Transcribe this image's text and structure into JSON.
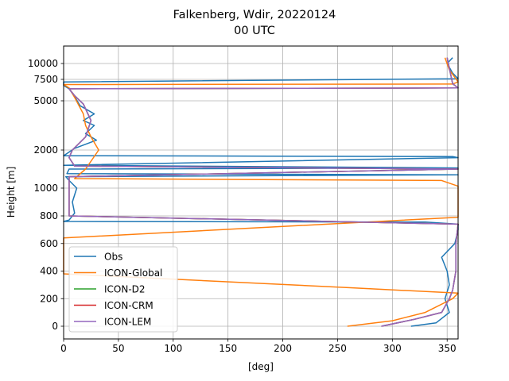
{
  "chart_data": {
    "type": "line",
    "title_line1": "Falkenberg, Wdir, 20220124",
    "title_line2": "00 UTC",
    "xlabel": "[deg]",
    "ylabel": "Height [m]",
    "xlim": [
      0,
      360
    ],
    "y_scale": "piecewise (heights above 800 m compressed)",
    "grid": true,
    "legend_position": "lower left",
    "x_ticks": [
      0,
      50,
      100,
      150,
      200,
      250,
      300,
      350
    ],
    "y_ticks": [
      0,
      200,
      400,
      600,
      800,
      1000,
      2000,
      5000,
      7500,
      10000
    ],
    "series": [
      {
        "name": "Obs",
        "color": "#1f77b4",
        "points": [
          [
            317,
            0
          ],
          [
            340,
            25
          ],
          [
            352,
            100
          ],
          [
            348,
            200
          ],
          [
            352,
            300
          ],
          [
            350,
            400
          ],
          [
            345,
            500
          ],
          [
            357,
            600
          ],
          [
            360,
            700
          ],
          [
            360,
            740
          ],
          [
            330,
            755
          ],
          [
            0,
            760
          ],
          [
            5,
            770
          ],
          [
            10,
            820
          ],
          [
            8,
            900
          ],
          [
            12,
            1000
          ],
          [
            5,
            1200
          ],
          [
            2,
            1300
          ],
          [
            360,
            1350
          ],
          [
            3,
            1380
          ],
          [
            5,
            1500
          ],
          [
            360,
            1530
          ],
          [
            0,
            1600
          ],
          [
            360,
            1800
          ],
          [
            355,
            1830
          ],
          [
            0,
            1850
          ],
          [
            10,
            2100
          ],
          [
            30,
            2600
          ],
          [
            20,
            3000
          ],
          [
            28,
            3500
          ],
          [
            18,
            3800
          ],
          [
            28,
            4200
          ],
          [
            15,
            4700
          ],
          [
            10,
            5500
          ],
          [
            5,
            6400
          ],
          [
            0,
            6800
          ],
          [
            0,
            7200
          ],
          [
            360,
            7600
          ],
          [
            355,
            8500
          ],
          [
            350,
            10000
          ],
          [
            355,
            10500
          ]
        ]
      },
      {
        "name": "ICON-Global",
        "color": "#ff7f0e",
        "points": [
          [
            259,
            0
          ],
          [
            300,
            40
          ],
          [
            330,
            100
          ],
          [
            355,
            200
          ],
          [
            360,
            240
          ],
          [
            260,
            280
          ],
          [
            0,
            380
          ],
          [
            0,
            500
          ],
          [
            0,
            640
          ],
          [
            360,
            790
          ],
          [
            360,
            1050
          ],
          [
            345,
            1200
          ],
          [
            10,
            1250
          ],
          [
            20,
            1500
          ],
          [
            32,
            2000
          ],
          [
            25,
            2800
          ],
          [
            20,
            3500
          ],
          [
            18,
            4200
          ],
          [
            10,
            5400
          ],
          [
            5,
            6500
          ],
          [
            0,
            6900
          ],
          [
            355,
            6950
          ],
          [
            360,
            7200
          ],
          [
            352,
            9000
          ],
          [
            348,
            10500
          ]
        ]
      },
      {
        "name": "ICON-D2",
        "color": "#2ca02c",
        "points": [
          [
            290,
            0
          ],
          [
            320,
            50
          ],
          [
            345,
            100
          ],
          [
            352,
            200
          ],
          [
            355,
            260
          ],
          [
            358,
            400
          ],
          [
            358,
            600
          ],
          [
            360,
            740
          ],
          [
            5,
            800
          ],
          [
            5,
            1300
          ],
          [
            360,
            1500
          ],
          [
            10,
            1580
          ],
          [
            5,
            1800
          ],
          [
            8,
            2000
          ],
          [
            20,
            2800
          ],
          [
            25,
            3800
          ],
          [
            18,
            4800
          ],
          [
            10,
            5600
          ],
          [
            5,
            6400
          ],
          [
            360,
            6500
          ],
          [
            355,
            7000
          ],
          [
            350,
            10500
          ]
        ]
      },
      {
        "name": "ICON-CRM",
        "color": "#d62728",
        "points": [
          [
            290,
            0
          ],
          [
            320,
            50
          ],
          [
            345,
            100
          ],
          [
            352,
            200
          ],
          [
            355,
            260
          ],
          [
            358,
            400
          ],
          [
            358,
            600
          ],
          [
            360,
            740
          ],
          [
            5,
            800
          ],
          [
            5,
            1300
          ],
          [
            360,
            1500
          ],
          [
            10,
            1580
          ],
          [
            5,
            1800
          ],
          [
            8,
            2000
          ],
          [
            20,
            2800
          ],
          [
            25,
            3800
          ],
          [
            18,
            4800
          ],
          [
            10,
            5600
          ],
          [
            5,
            6400
          ],
          [
            360,
            6500
          ],
          [
            355,
            7000
          ],
          [
            350,
            10500
          ]
        ]
      },
      {
        "name": "ICON-LEM",
        "color": "#9467bd",
        "points": [
          [
            290,
            0
          ],
          [
            320,
            50
          ],
          [
            345,
            100
          ],
          [
            352,
            200
          ],
          [
            355,
            260
          ],
          [
            358,
            400
          ],
          [
            358,
            600
          ],
          [
            360,
            740
          ],
          [
            5,
            800
          ],
          [
            5,
            1300
          ],
          [
            360,
            1500
          ],
          [
            10,
            1580
          ],
          [
            5,
            1800
          ],
          [
            8,
            2000
          ],
          [
            20,
            2800
          ],
          [
            25,
            3800
          ],
          [
            18,
            4800
          ],
          [
            10,
            5600
          ],
          [
            5,
            6400
          ],
          [
            360,
            6500
          ],
          [
            355,
            7000
          ],
          [
            350,
            10500
          ]
        ]
      }
    ]
  }
}
